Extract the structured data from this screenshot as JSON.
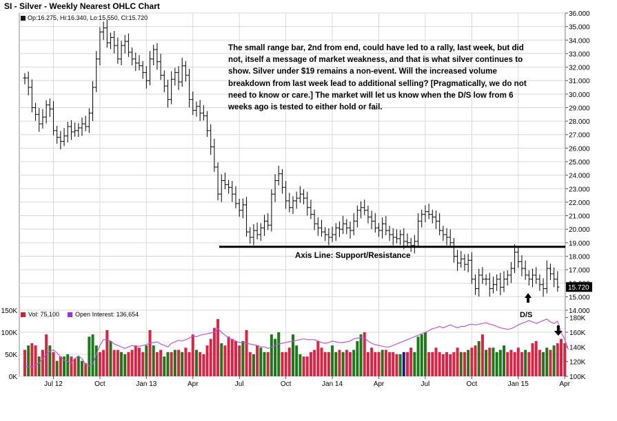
{
  "title": "SI - Silver - Weekly Nearest OHLC Chart",
  "ohlc_legend": {
    "text": "Op:16.275, Hi:16.340, Lo:15.550, Cl:15.720",
    "color": "#1a1a1a"
  },
  "volume_legend": {
    "vol_text": "Vol: 75,100",
    "vol_color": "#cc2233",
    "oi_text": "Open Interest: 136,654",
    "oi_color": "#9933cc"
  },
  "annotation": "The small range bar, 2nd from end, could have led to a rally, last week, but did not, itself a message of market weakness, and that is what silver continues to show.  Silver under $19 remains a non-event.  Will the increased volume breakdown from last week lead to additional selling? [Pragmatically, we do not need to know or care.]  The market will let us know when the D/S low from 6 weeks ago is tested to either hold or fail.",
  "axis_line_label": "Axis Line: Support/Resistance",
  "ds_label": "D/S",
  "colors": {
    "up_volume": "#1a7a1a",
    "down_volume": "#dd2244",
    "flat_volume": "#1a1a88",
    "open_interest": "#bb55dd",
    "price_bar": "#000000",
    "last_price_box": "#000000"
  },
  "chart_data": [
    {
      "type": "ohlc",
      "x_ticks": [
        "Jul 12",
        "Oct",
        "Jan 13",
        "Apr",
        "Jul",
        "Oct",
        "Jan 14",
        "Apr",
        "Jul",
        "Oct",
        "Jan 15",
        "Apr"
      ],
      "y_ticks": [
        "36.000",
        "35.000",
        "34.000",
        "33.000",
        "32.000",
        "31.000",
        "30.000",
        "29.000",
        "28.000",
        "27.000",
        "26.000",
        "25.000",
        "24.000",
        "23.000",
        "22.000",
        "21.000",
        "20.000",
        "19.000",
        "18.000",
        "17.000",
        "16.000",
        "15.000",
        "14.000"
      ],
      "ylim": [
        14,
        36
      ],
      "last_price_label": "15.720",
      "support_resistance_level": 18.7,
      "closes": [
        31.2,
        30.5,
        29.0,
        28.5,
        27.8,
        28.3,
        29.2,
        28.9,
        27.3,
        26.8,
        26.5,
        26.9,
        27.6,
        27.2,
        27.3,
        27.5,
        27.8,
        27.6,
        28.6,
        30.5,
        32.6,
        34.6,
        34.9,
        33.8,
        34.2,
        33.6,
        32.6,
        33.6,
        33.9,
        33.1,
        32.6,
        32.3,
        32.1,
        31.6,
        31.0,
        32.6,
        33.3,
        32.4,
        31.4,
        30.6,
        29.6,
        31.1,
        31.6,
        30.9,
        32.1,
        31.4,
        29.6,
        28.8,
        29.1,
        28.6,
        28.4,
        27.3,
        26.1,
        24.6,
        22.6,
        23.6,
        23.3,
        23.1,
        22.6,
        21.9,
        21.4,
        21.8,
        19.8,
        19.4,
        19.9,
        19.6,
        20.1,
        20.6,
        20.3,
        22.6,
        23.6,
        24.1,
        23.1,
        22.1,
        21.6,
        22.1,
        22.3,
        22.6,
        22.3,
        21.6,
        21.1,
        20.4,
        20.1,
        19.8,
        19.6,
        19.4,
        19.6,
        20.1,
        20.0,
        20.4,
        20.1,
        19.9,
        20.6,
        21.4,
        21.6,
        21.4,
        20.9,
        20.6,
        20.1,
        19.9,
        20.4,
        19.9,
        19.6,
        19.4,
        19.3,
        19.6,
        19.1,
        19.0,
        18.8,
        19.1,
        20.6,
        21.1,
        21.3,
        21.1,
        20.9,
        20.6,
        19.9,
        19.6,
        19.4,
        19.0,
        18.0,
        17.5,
        17.8,
        17.4,
        17.7,
        16.3,
        15.6,
        16.6,
        16.3,
        16.3,
        15.6,
        15.9,
        16.3,
        15.7,
        16.3,
        16.6,
        17.1,
        18.3,
        17.6,
        17.1,
        16.6,
        16.3,
        16.6,
        16.3,
        15.9,
        15.6,
        17.1,
        16.7,
        16.3,
        15.72
      ]
    },
    {
      "type": "bar",
      "y_ticks": [
        "150K",
        "100K",
        "50K",
        "0K"
      ],
      "ylim": [
        0,
        150000
      ],
      "volume": [
        60000,
        70000,
        75000,
        70000,
        45000,
        60000,
        95000,
        70000,
        55000,
        35000,
        45000,
        45000,
        50000,
        45000,
        40000,
        45000,
        35000,
        30000,
        90000,
        95000,
        70000,
        55000,
        60000,
        105000,
        80000,
        60000,
        60000,
        55000,
        50000,
        55000,
        60000,
        70000,
        65000,
        55000,
        70000,
        105000,
        70000,
        55000,
        60000,
        45000,
        55000,
        55000,
        60000,
        60000,
        55000,
        65000,
        55000,
        95000,
        60000,
        55000,
        50000,
        70000,
        85000,
        110000,
        130000,
        75000,
        70000,
        90000,
        85000,
        80000,
        70000,
        80000,
        105000,
        55000,
        50000,
        70000,
        65000,
        55000,
        55000,
        95000,
        85000,
        100000,
        55000,
        55000,
        65000,
        95000,
        70000,
        50000,
        45000,
        45000,
        55000,
        60000,
        80000,
        65000,
        55000,
        55000,
        70000,
        55000,
        60000,
        55000,
        60000,
        55000,
        60000,
        80000,
        95000,
        100000,
        55000,
        65000,
        55000,
        55000,
        60000,
        60000,
        55000,
        55000,
        50000,
        50000,
        55000,
        55000,
        65000,
        55000,
        90000,
        95000,
        100000,
        55000,
        55000,
        65000,
        55000,
        50000,
        55000,
        50000,
        55000,
        65000,
        55000,
        55000,
        60000,
        65000,
        70000,
        80000,
        95000,
        60000,
        65000,
        65000,
        55000,
        60000,
        70000,
        55000,
        60000,
        55000,
        65000,
        55000,
        60000,
        55000,
        75000,
        80000,
        60000,
        55000,
        65000,
        60000,
        70000,
        75000,
        85000,
        75100
      ],
      "volume_direction": [
        "d",
        "u",
        "d",
        "d",
        "u",
        "d",
        "d",
        "u",
        "d",
        "u",
        "d",
        "u",
        "u",
        "d",
        "d",
        "u",
        "u",
        "d",
        "u",
        "u",
        "u",
        "d",
        "d",
        "d",
        "u",
        "d",
        "d",
        "u",
        "u",
        "d",
        "d",
        "d",
        "d",
        "d",
        "u",
        "d",
        "u",
        "d",
        "d",
        "u",
        "u",
        "d",
        "u",
        "d",
        "u",
        "d",
        "d",
        "d",
        "u",
        "d",
        "d",
        "d",
        "d",
        "d",
        "d",
        "u",
        "d",
        "d",
        "d",
        "d",
        "d",
        "u",
        "d",
        "d",
        "u",
        "d",
        "u",
        "u",
        "d",
        "u",
        "u",
        "u",
        "d",
        "d",
        "d",
        "u",
        "u",
        "u",
        "d",
        "d",
        "d",
        "d",
        "d",
        "d",
        "d",
        "d",
        "u",
        "u",
        "d",
        "u",
        "d",
        "d",
        "u",
        "u",
        "u",
        "d",
        "d",
        "d",
        "d",
        "d",
        "u",
        "d",
        "d",
        "d",
        "d",
        "u",
        "f",
        "d",
        "d",
        "u",
        "u",
        "u",
        "u",
        "d",
        "d",
        "d",
        "d",
        "d",
        "d",
        "d",
        "d",
        "d",
        "u",
        "d",
        "u",
        "d",
        "d",
        "u",
        "d",
        "u",
        "d",
        "u",
        "u",
        "u",
        "u",
        "d",
        "d",
        "d",
        "d",
        "d",
        "u",
        "d",
        "d",
        "d",
        "d",
        "u",
        "u",
        "d",
        "u",
        "d",
        "d",
        "d"
      ],
      "open_interest_ylim": [
        100000,
        190000
      ],
      "open_interest_y_ticks": [
        "180K",
        "160K",
        "140K",
        "120K",
        "100K"
      ],
      "open_interest": [
        114000,
        113000,
        113000,
        115000,
        118000,
        124000,
        130000,
        134000,
        136000,
        132000,
        126000,
        122000,
        120000,
        118000,
        124000,
        128000,
        124000,
        116000,
        114000,
        116000,
        130000,
        142000,
        150000,
        150000,
        148000,
        144000,
        142000,
        140000,
        138000,
        140000,
        142000,
        140000,
        141000,
        142000,
        143000,
        145000,
        146000,
        147000,
        144000,
        142000,
        140000,
        145000,
        147000,
        149000,
        148000,
        150000,
        152000,
        155000,
        154000,
        156000,
        157000,
        158000,
        159000,
        160000,
        165000,
        160000,
        156000,
        152000,
        150000,
        148000,
        146000,
        146000,
        145000,
        144000,
        143000,
        142000,
        140000,
        140000,
        138000,
        140000,
        142000,
        144000,
        145000,
        146000,
        147000,
        148000,
        149000,
        150000,
        151000,
        150000,
        150000,
        150000,
        148000,
        146000,
        145000,
        146000,
        148000,
        147000,
        146000,
        146000,
        147000,
        148000,
        151000,
        152000,
        153000,
        152000,
        148000,
        145000,
        143000,
        142000,
        141000,
        140000,
        140000,
        142000,
        144000,
        146000,
        148000,
        150000,
        152000,
        154000,
        156000,
        158000,
        160000,
        162000,
        165000,
        166000,
        168000,
        166000,
        168000,
        170000,
        168000,
        166000,
        168000,
        168000,
        170000,
        171000,
        170000,
        171000,
        172000,
        173000,
        171000,
        170000,
        168000,
        166000,
        165000,
        164000,
        165000,
        167000,
        170000,
        172000,
        174000,
        176000,
        174000,
        172000,
        174000,
        176000,
        178000,
        174000,
        172000,
        175000,
        160000,
        150000,
        136654
      ]
    }
  ]
}
